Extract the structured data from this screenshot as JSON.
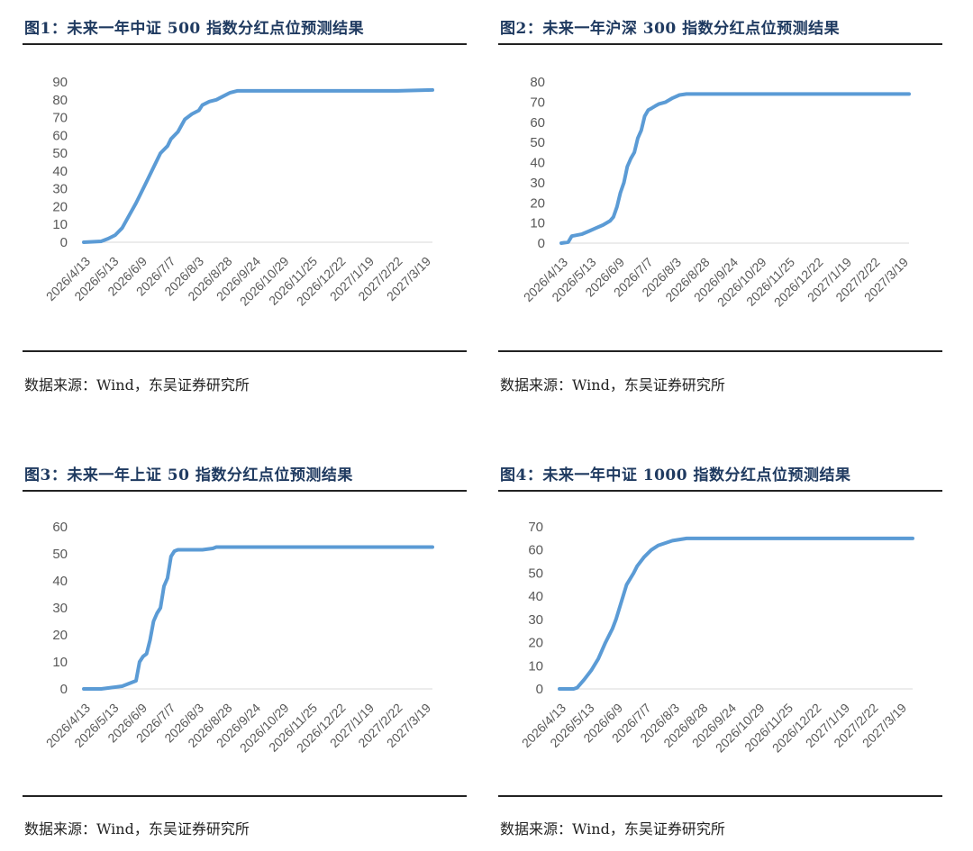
{
  "source_text": "数据来源：Wind，东吴证券研究所",
  "charts": [
    {
      "title": "图1：未来一年中证 500 指数分红点位预测结果"
    },
    {
      "title": "图2：未来一年沪深 300 指数分红点位预测结果"
    },
    {
      "title": "图3：未来一年上证 50 指数分红点位预测结果"
    },
    {
      "title": "图4：未来一年中证 1000 指数分红点位预测结果"
    }
  ],
  "chart_data": [
    {
      "type": "line",
      "title": "图1：未来一年中证 500 指数分红点位预测结果",
      "x_tick_labels": [
        "2026/4/13",
        "2026/5/13",
        "2026/6/9",
        "2026/7/7",
        "2026/8/3",
        "2026/8/28",
        "2026/9/24",
        "2026/10/29",
        "2026/11/25",
        "2026/12/22",
        "2027/1/19",
        "2027/2/22",
        "2027/3/19"
      ],
      "ylim": [
        0,
        90
      ],
      "y_ticks": [
        0,
        10,
        20,
        30,
        40,
        50,
        60,
        70,
        80,
        90
      ],
      "grid": false,
      "line_color": "#5b9bd5",
      "series": [
        {
          "x": [
            0,
            0.05,
            0.07,
            0.09,
            0.11,
            0.13,
            0.15,
            0.16,
            0.18,
            0.2,
            0.22,
            0.24,
            0.25,
            0.27,
            0.29,
            0.31,
            0.33,
            0.34,
            0.36,
            0.38,
            0.4,
            0.42,
            0.44,
            0.46,
            0.48,
            0.5,
            0.53,
            0.56,
            0.6,
            0.7,
            0.8,
            0.9,
            1.0
          ],
          "values": [
            0,
            0.5,
            2,
            4,
            8,
            15,
            22,
            26,
            34,
            42,
            50,
            54,
            58,
            62,
            69,
            72,
            74,
            77,
            79,
            80,
            82,
            84,
            85,
            85,
            85,
            85,
            85,
            85,
            85,
            85,
            85,
            85,
            85.5
          ]
        }
      ]
    },
    {
      "type": "line",
      "title": "图2：未来一年沪深 300 指数分红点位预测结果",
      "x_tick_labels": [
        "2026/4/13",
        "2026/5/13",
        "2026/6/9",
        "2026/7/7",
        "2026/8/3",
        "2026/8/28",
        "2026/9/24",
        "2026/10/29",
        "2026/11/25",
        "2026/12/22",
        "2027/1/19",
        "2027/2/22",
        "2027/3/19"
      ],
      "ylim": [
        0,
        80
      ],
      "y_ticks": [
        0,
        10,
        20,
        30,
        40,
        50,
        60,
        70,
        80
      ],
      "grid": false,
      "line_color": "#5b9bd5",
      "series": [
        {
          "x": [
            0,
            0.02,
            0.03,
            0.06,
            0.08,
            0.1,
            0.12,
            0.14,
            0.15,
            0.16,
            0.17,
            0.18,
            0.19,
            0.2,
            0.21,
            0.22,
            0.23,
            0.24,
            0.25,
            0.26,
            0.27,
            0.28,
            0.3,
            0.32,
            0.34,
            0.36,
            0.38,
            0.4,
            0.5,
            0.6,
            0.8,
            1.0
          ],
          "values": [
            0,
            0.5,
            3.5,
            4.5,
            6,
            7.5,
            9,
            11,
            13,
            18,
            25,
            30,
            38,
            42,
            45,
            52,
            56,
            63,
            66,
            67,
            68,
            69,
            70,
            72,
            73.5,
            74,
            74,
            74,
            74,
            74,
            74,
            74
          ]
        }
      ]
    },
    {
      "type": "line",
      "title": "图3：未来一年上证 50 指数分红点位预测结果",
      "x_tick_labels": [
        "2026/4/13",
        "2026/5/13",
        "2026/6/9",
        "2026/7/7",
        "2026/8/3",
        "2026/8/28",
        "2026/9/24",
        "2026/10/29",
        "2026/11/25",
        "2026/12/22",
        "2027/1/19",
        "2027/2/22",
        "2027/3/19"
      ],
      "ylim": [
        0,
        60
      ],
      "y_ticks": [
        0,
        10,
        20,
        30,
        40,
        50,
        60
      ],
      "grid": false,
      "line_color": "#5b9bd5",
      "series": [
        {
          "x": [
            0,
            0.05,
            0.08,
            0.11,
            0.13,
            0.15,
            0.16,
            0.17,
            0.18,
            0.19,
            0.2,
            0.21,
            0.22,
            0.23,
            0.24,
            0.25,
            0.26,
            0.27,
            0.28,
            0.29,
            0.3,
            0.34,
            0.37,
            0.38,
            0.5,
            0.7,
            1.0
          ],
          "values": [
            0,
            0,
            0.5,
            1,
            2,
            3,
            10,
            12,
            13,
            18,
            25,
            28,
            30,
            38,
            41,
            49,
            51,
            51.5,
            51.5,
            51.5,
            51.5,
            51.5,
            52,
            52.5,
            52.5,
            52.5,
            52.5
          ]
        }
      ]
    },
    {
      "type": "line",
      "title": "图4：未来一年中证 1000 指数分红点位预测结果",
      "x_tick_labels": [
        "2026/4/13",
        "2026/5/13",
        "2026/6/9",
        "2026/7/7",
        "2026/8/3",
        "2026/8/28",
        "2026/9/24",
        "2026/10/29",
        "2026/11/25",
        "2026/12/22",
        "2027/1/19",
        "2027/2/22",
        "2027/3/19"
      ],
      "ylim": [
        0,
        70
      ],
      "y_ticks": [
        0,
        10,
        20,
        30,
        40,
        50,
        60,
        70
      ],
      "grid": false,
      "line_color": "#5b9bd5",
      "series": [
        {
          "x": [
            0,
            0.04,
            0.05,
            0.07,
            0.09,
            0.11,
            0.13,
            0.15,
            0.16,
            0.18,
            0.19,
            0.21,
            0.22,
            0.24,
            0.26,
            0.28,
            0.3,
            0.32,
            0.34,
            0.36,
            0.38,
            0.4,
            0.5,
            0.7,
            1.0
          ],
          "values": [
            0,
            0,
            0.5,
            4,
            8,
            13,
            20,
            26,
            30,
            40,
            45,
            50,
            53,
            57,
            60,
            62,
            63,
            64,
            64.5,
            65,
            65,
            65,
            65,
            65,
            65
          ]
        }
      ]
    }
  ]
}
